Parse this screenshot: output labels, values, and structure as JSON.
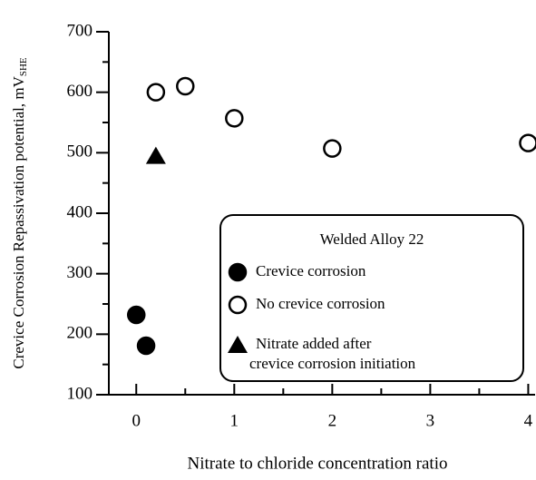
{
  "chart_data": {
    "type": "scatter",
    "x_label": "Nitrate to chloride concentration ratio",
    "y_label": "Crevice Corrosion Repassivation potential, mV",
    "y_label_sub": "SHE",
    "xlim": [
      -0.28,
      4.07
    ],
    "ylim": [
      100,
      700
    ],
    "xticks": [
      0,
      1,
      2,
      3,
      4
    ],
    "yticks": [
      100,
      200,
      300,
      400,
      500,
      600,
      700
    ],
    "xticks_minor": [
      0.5,
      1.5,
      2.5,
      3.5
    ],
    "yticks_minor": [
      150,
      250,
      350,
      450,
      550,
      650
    ],
    "legend_title": "Welded Alloy 22",
    "legend": "lower right",
    "series": [
      {
        "name": "Crevice corrosion",
        "marker": "filled-circle",
        "color": "#000000",
        "x": [
          0,
          0.1
        ],
        "values": [
          232,
          181
        ]
      },
      {
        "name": "No crevice corrosion",
        "marker": "open-circle",
        "color": "#000000",
        "x": [
          0.2,
          0.5,
          1,
          2,
          4
        ],
        "values": [
          600,
          610,
          557,
          507,
          516
        ]
      },
      {
        "name": "Nitrate added after\ncrevice corrosion initiation",
        "marker": "triangle",
        "color": "#000000",
        "x": [
          0.2
        ],
        "values": [
          495
        ]
      }
    ]
  }
}
